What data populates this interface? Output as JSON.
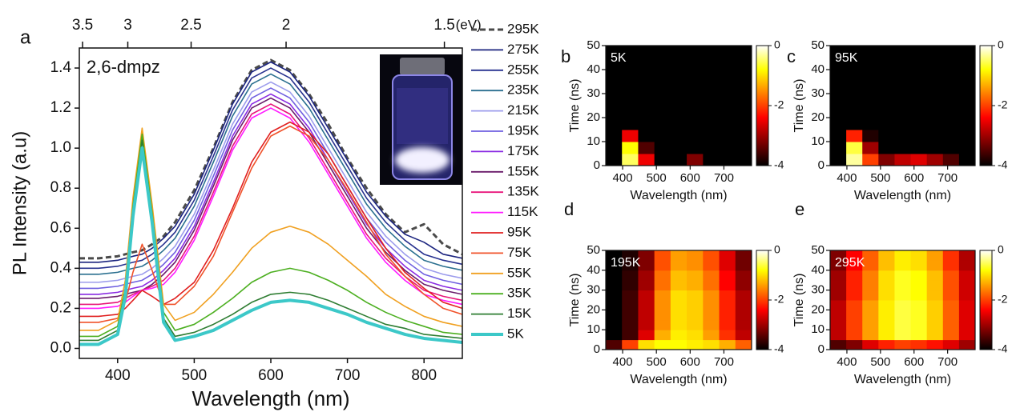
{
  "chart_data": [
    {
      "type": "line",
      "panel_label": "a",
      "annotation": "2,6-dmpz",
      "xlabel": "Wavelength (nm)",
      "ylabel": "PL Intensity (a.u)",
      "x2label": "(eV)",
      "x": [
        350,
        375,
        400,
        410,
        420,
        432,
        445,
        460,
        475,
        500,
        525,
        550,
        575,
        600,
        625,
        650,
        675,
        700,
        725,
        750,
        775,
        800,
        825,
        850
      ],
      "xlim": [
        350,
        850
      ],
      "xticks": [
        400,
        500,
        600,
        700,
        800
      ],
      "ylim": [
        -0.05,
        1.5
      ],
      "yticks": [
        {
          "value": 0,
          "label": "0.0"
        },
        0.2,
        0.4,
        0.6,
        0.8,
        {
          "value": 1,
          "label": "1.0"
        },
        1.2,
        1.4
      ],
      "x2ticks": [
        3.5,
        3,
        2.5,
        2,
        1.5
      ],
      "series": [
        {
          "name": "295K",
          "color": "#4a4a4a",
          "line_style": "dashed",
          "values": [
            0.45,
            0.45,
            0.46,
            0.47,
            0.48,
            0.49,
            0.52,
            0.56,
            0.63,
            0.79,
            1.0,
            1.23,
            1.39,
            1.44,
            1.39,
            1.27,
            1.12,
            0.95,
            0.8,
            0.67,
            0.58,
            0.62,
            0.52,
            0.47
          ]
        },
        {
          "name": "275K",
          "color": "#1a237e",
          "values": [
            0.43,
            0.43,
            0.44,
            0.45,
            0.46,
            0.47,
            0.5,
            0.55,
            0.61,
            0.77,
            0.99,
            1.22,
            1.38,
            1.43,
            1.38,
            1.26,
            1.1,
            0.94,
            0.78,
            0.66,
            0.57,
            0.53,
            0.47,
            0.45
          ]
        },
        {
          "name": "255K",
          "color": "#27318f",
          "values": [
            0.4,
            0.4,
            0.41,
            0.42,
            0.43,
            0.44,
            0.47,
            0.52,
            0.58,
            0.74,
            0.96,
            1.19,
            1.35,
            1.4,
            1.35,
            1.23,
            1.07,
            0.91,
            0.75,
            0.63,
            0.54,
            0.47,
            0.44,
            0.42
          ]
        },
        {
          "name": "235K",
          "color": "#2a6f8f",
          "values": [
            0.37,
            0.37,
            0.38,
            0.39,
            0.4,
            0.41,
            0.44,
            0.49,
            0.55,
            0.71,
            0.93,
            1.16,
            1.32,
            1.37,
            1.32,
            1.2,
            1.04,
            0.88,
            0.72,
            0.6,
            0.51,
            0.44,
            0.41,
            0.39
          ]
        },
        {
          "name": "215K",
          "color": "#9c9cec",
          "values": [
            0.33,
            0.33,
            0.34,
            0.35,
            0.36,
            0.37,
            0.4,
            0.45,
            0.51,
            0.67,
            0.89,
            1.12,
            1.28,
            1.33,
            1.28,
            1.16,
            1.0,
            0.84,
            0.68,
            0.56,
            0.47,
            0.4,
            0.37,
            0.35
          ]
        },
        {
          "name": "195K",
          "color": "#6f5fe0",
          "values": [
            0.3,
            0.3,
            0.31,
            0.32,
            0.33,
            0.34,
            0.37,
            0.42,
            0.48,
            0.64,
            0.86,
            1.09,
            1.25,
            1.3,
            1.25,
            1.13,
            0.97,
            0.81,
            0.65,
            0.53,
            0.44,
            0.37,
            0.34,
            0.32
          ]
        },
        {
          "name": "175K",
          "color": "#8a2be2",
          "values": [
            0.27,
            0.27,
            0.28,
            0.29,
            0.3,
            0.31,
            0.34,
            0.39,
            0.45,
            0.61,
            0.83,
            1.06,
            1.22,
            1.27,
            1.22,
            1.1,
            0.94,
            0.78,
            0.62,
            0.5,
            0.41,
            0.34,
            0.31,
            0.29
          ]
        },
        {
          "name": "155K",
          "color": "#6a1b6a",
          "values": [
            0.25,
            0.25,
            0.26,
            0.27,
            0.28,
            0.29,
            0.32,
            0.37,
            0.43,
            0.59,
            0.81,
            1.04,
            1.2,
            1.25,
            1.2,
            1.08,
            0.92,
            0.76,
            0.6,
            0.48,
            0.39,
            0.32,
            0.29,
            0.27
          ]
        },
        {
          "name": "135K",
          "color": "#e8157a",
          "values": [
            0.22,
            0.22,
            0.23,
            0.25,
            0.27,
            0.29,
            0.31,
            0.34,
            0.4,
            0.56,
            0.78,
            1.01,
            1.17,
            1.22,
            1.17,
            1.05,
            0.89,
            0.73,
            0.57,
            0.45,
            0.36,
            0.29,
            0.26,
            0.24
          ]
        },
        {
          "name": "115K",
          "color": "#ff1aff",
          "values": [
            0.2,
            0.2,
            0.21,
            0.23,
            0.26,
            0.29,
            0.3,
            0.32,
            0.38,
            0.54,
            0.76,
            0.99,
            1.15,
            1.2,
            1.15,
            1.03,
            0.87,
            0.71,
            0.55,
            0.43,
            0.34,
            0.27,
            0.24,
            0.22
          ]
        },
        {
          "name": "95K",
          "color": "#e02020",
          "values": [
            0.16,
            0.16,
            0.17,
            0.2,
            0.24,
            0.29,
            0.26,
            0.22,
            0.25,
            0.33,
            0.49,
            0.7,
            0.93,
            1.08,
            1.13,
            1.08,
            0.97,
            0.81,
            0.65,
            0.5,
            0.38,
            0.3,
            0.23,
            0.2
          ]
        },
        {
          "name": "75K",
          "color": "#f0522a",
          "values": [
            0.13,
            0.13,
            0.15,
            0.23,
            0.38,
            0.52,
            0.39,
            0.22,
            0.22,
            0.31,
            0.46,
            0.68,
            0.9,
            1.06,
            1.11,
            1.06,
            0.94,
            0.79,
            0.63,
            0.47,
            0.36,
            0.27,
            0.2,
            0.17
          ]
        },
        {
          "name": "55K",
          "color": "#f0a020",
          "values": [
            0.09,
            0.09,
            0.14,
            0.34,
            0.75,
            1.1,
            0.72,
            0.22,
            0.14,
            0.18,
            0.27,
            0.38,
            0.5,
            0.58,
            0.61,
            0.58,
            0.52,
            0.44,
            0.36,
            0.27,
            0.21,
            0.16,
            0.13,
            0.11
          ]
        },
        {
          "name": "35K",
          "color": "#4caf20",
          "values": [
            0.06,
            0.06,
            0.11,
            0.3,
            0.71,
            1.07,
            0.68,
            0.18,
            0.09,
            0.12,
            0.18,
            0.25,
            0.33,
            0.38,
            0.4,
            0.38,
            0.34,
            0.29,
            0.23,
            0.18,
            0.14,
            0.11,
            0.08,
            0.07
          ]
        },
        {
          "name": "15K",
          "color": "#2e7d32",
          "values": [
            0.04,
            0.04,
            0.09,
            0.28,
            0.69,
            1.04,
            0.66,
            0.15,
            0.06,
            0.08,
            0.12,
            0.17,
            0.23,
            0.27,
            0.28,
            0.27,
            0.24,
            0.2,
            0.16,
            0.12,
            0.1,
            0.07,
            0.06,
            0.05
          ]
        },
        {
          "name": "5K",
          "color": "#3cc8c8",
          "line_style": "thick",
          "values": [
            0.02,
            0.02,
            0.07,
            0.26,
            0.66,
            1.0,
            0.63,
            0.13,
            0.04,
            0.06,
            0.09,
            0.14,
            0.19,
            0.23,
            0.24,
            0.23,
            0.2,
            0.17,
            0.13,
            0.1,
            0.07,
            0.05,
            0.04,
            0.03
          ]
        }
      ]
    },
    {
      "type": "heatmap",
      "panel_label": "b",
      "annotation": "5K",
      "xlabel": "Wavelength (nm)",
      "ylabel": "Time (ns)",
      "colormap": "hot",
      "xlim": [
        350,
        782
      ],
      "xticks": [
        400,
        500,
        600,
        700
      ],
      "ylim": [
        0,
        50
      ],
      "yticks": [
        0,
        10,
        20,
        30,
        40,
        50
      ],
      "zlim": [
        -4,
        0
      ],
      "zticks": [
        0,
        -2,
        -4
      ],
      "x": [
        374,
        422,
        470,
        518,
        566,
        614,
        662,
        710,
        758
      ],
      "y": [
        2.5,
        7.5,
        12.5,
        17.5,
        22.5,
        27.5,
        32.5,
        37.5,
        42.5,
        47.5
      ],
      "z": [
        [
          -4,
          -0.5,
          -2.5,
          -4,
          -4,
          -3.2,
          -4,
          -4,
          -4
        ],
        [
          -4,
          -0.8,
          -3.5,
          -4,
          -4,
          -4,
          -4,
          -4,
          -4
        ],
        [
          -4,
          -2.5,
          -4,
          -4,
          -4,
          -4,
          -4,
          -4,
          -4
        ],
        [
          -4,
          -4,
          -4,
          -4,
          -4,
          -4,
          -4,
          -4,
          -4
        ],
        [
          -4,
          -4,
          -4,
          -4,
          -4,
          -4,
          -4,
          -4,
          -4
        ],
        [
          -4,
          -4,
          -4,
          -4,
          -4,
          -4,
          -4,
          -4,
          -4
        ],
        [
          -4,
          -4,
          -4,
          -4,
          -4,
          -4,
          -4,
          -4,
          -4
        ],
        [
          -4,
          -4,
          -4,
          -4,
          -4,
          -4,
          -4,
          -4,
          -4
        ],
        [
          -4,
          -4,
          -4,
          -4,
          -4,
          -4,
          -4,
          -4,
          -4
        ],
        [
          -4,
          -4,
          -4,
          -4,
          -4,
          -4,
          -4,
          -4,
          -4
        ]
      ]
    },
    {
      "type": "heatmap",
      "panel_label": "c",
      "annotation": "95K",
      "xlabel": "Wavelength (nm)",
      "ylabel": "Time (ns)",
      "colormap": "hot",
      "xlim": [
        350,
        782
      ],
      "xticks": [
        400,
        500,
        600,
        700
      ],
      "ylim": [
        0,
        50
      ],
      "yticks": [
        0,
        10,
        20,
        30,
        40,
        50
      ],
      "zlim": [
        -4,
        0
      ],
      "zticks": [
        0,
        -2,
        -4
      ],
      "x": [
        374,
        422,
        470,
        518,
        566,
        614,
        662,
        710,
        758
      ],
      "y": [
        2.5,
        7.5,
        12.5,
        17.5,
        22.5,
        27.5,
        32.5,
        37.5,
        42.5,
        47.5
      ],
      "z": [
        [
          -4,
          -0.3,
          -2,
          -3.2,
          -2.8,
          -2.6,
          -3,
          -3.5,
          -4
        ],
        [
          -4,
          -0.6,
          -3,
          -4,
          -4,
          -4,
          -4,
          -4,
          -4
        ],
        [
          -4,
          -2.2,
          -3.8,
          -4,
          -4,
          -4,
          -4,
          -4,
          -4
        ],
        [
          -4,
          -4,
          -4,
          -4,
          -4,
          -4,
          -4,
          -4,
          -4
        ],
        [
          -4,
          -4,
          -4,
          -4,
          -4,
          -4,
          -4,
          -4,
          -4
        ],
        [
          -4,
          -4,
          -4,
          -4,
          -4,
          -4,
          -4,
          -4,
          -4
        ],
        [
          -4,
          -4,
          -4,
          -4,
          -4,
          -4,
          -4,
          -4,
          -4
        ],
        [
          -4,
          -4,
          -4,
          -4,
          -4,
          -4,
          -4,
          -4,
          -4
        ],
        [
          -4,
          -4,
          -4,
          -4,
          -4,
          -4,
          -4,
          -4,
          -4
        ],
        [
          -4,
          -4,
          -4,
          -4,
          -4,
          -4,
          -4,
          -4,
          -4
        ]
      ]
    },
    {
      "type": "heatmap",
      "panel_label": "d",
      "annotation": "195K",
      "xlabel": "Wavelength (nm)",
      "ylabel": "Time (ns)",
      "colormap": "hot",
      "xlim": [
        350,
        782
      ],
      "xticks": [
        400,
        500,
        600,
        700
      ],
      "ylim": [
        0,
        50
      ],
      "yticks": [
        0,
        10,
        20,
        30,
        40,
        50
      ],
      "zlim": [
        -4,
        0
      ],
      "zticks": [
        0,
        -2,
        -4
      ],
      "x": [
        374,
        422,
        470,
        518,
        566,
        614,
        662,
        710,
        758
      ],
      "y": [
        2.5,
        7.5,
        12.5,
        17.5,
        22.5,
        27.5,
        32.5,
        37.5,
        42.5,
        47.5
      ],
      "z": [
        [
          -3.5,
          -2.0,
          -1.0,
          -0.8,
          -0.8,
          -0.9,
          -1.0,
          -1.3,
          -1.8
        ],
        [
          -4,
          -3.6,
          -2.6,
          -1.3,
          -0.9,
          -1.0,
          -1.4,
          -2.1,
          -2.8
        ],
        [
          -4,
          -3.6,
          -2.8,
          -1.5,
          -1.0,
          -1.1,
          -1.5,
          -2.2,
          -2.9
        ],
        [
          -4,
          -3.6,
          -2.8,
          -1.5,
          -1.0,
          -1.1,
          -1.5,
          -2.2,
          -2.9
        ],
        [
          -4,
          -3.6,
          -2.8,
          -1.5,
          -1.0,
          -1.1,
          -1.5,
          -2.2,
          -2.9
        ],
        [
          -4,
          -3.6,
          -2.8,
          -1.5,
          -1.0,
          -1.1,
          -1.5,
          -2.2,
          -2.9
        ],
        [
          -4,
          -3.7,
          -3.0,
          -1.7,
          -1.2,
          -1.3,
          -1.7,
          -2.4,
          -3.1
        ],
        [
          -4,
          -3.7,
          -3.0,
          -1.7,
          -1.2,
          -1.3,
          -1.7,
          -2.4,
          -3.1
        ],
        [
          -4,
          -3.8,
          -3.2,
          -1.9,
          -1.4,
          -1.5,
          -1.9,
          -2.6,
          -3.3
        ],
        [
          -4,
          -3.8,
          -3.2,
          -1.9,
          -1.4,
          -1.5,
          -1.9,
          -2.6,
          -3.3
        ]
      ]
    },
    {
      "type": "heatmap",
      "panel_label": "e",
      "annotation": "295K",
      "xlabel": "Wavelength (nm)",
      "ylabel": "Time (ns)",
      "colormap": "hot",
      "xlim": [
        350,
        782
      ],
      "xticks": [
        400,
        500,
        600,
        700
      ],
      "ylim": [
        0,
        50
      ],
      "yticks": [
        0,
        10,
        20,
        30,
        40,
        50
      ],
      "zlim": [
        -4,
        0
      ],
      "zticks": [
        0,
        -2,
        -4
      ],
      "x": [
        374,
        422,
        470,
        518,
        566,
        614,
        662,
        710,
        758
      ],
      "y": [
        2.5,
        7.5,
        12.5,
        17.5,
        22.5,
        27.5,
        32.5,
        37.5,
        42.5,
        47.5
      ],
      "z": [
        [
          -3.5,
          -3.2,
          -2.6,
          -2.2,
          -2.0,
          -2.1,
          -2.3,
          -2.6,
          -3.0
        ],
        [
          -2.8,
          -2.0,
          -1.4,
          -0.9,
          -0.6,
          -0.7,
          -1.1,
          -1.8,
          -2.6
        ],
        [
          -2.8,
          -2.0,
          -1.4,
          -0.9,
          -0.6,
          -0.7,
          -1.1,
          -1.8,
          -2.6
        ],
        [
          -2.8,
          -2.0,
          -1.4,
          -0.9,
          -0.6,
          -0.7,
          -1.1,
          -1.8,
          -2.6
        ],
        [
          -2.8,
          -2.0,
          -1.4,
          -0.9,
          -0.6,
          -0.7,
          -1.1,
          -1.8,
          -2.6
        ],
        [
          -3.0,
          -2.2,
          -1.6,
          -1.0,
          -0.7,
          -0.8,
          -1.2,
          -1.9,
          -2.7
        ],
        [
          -3.0,
          -2.2,
          -1.6,
          -1.0,
          -0.7,
          -0.8,
          -1.2,
          -1.9,
          -2.7
        ],
        [
          -3.0,
          -2.2,
          -1.6,
          -1.0,
          -0.7,
          -0.8,
          -1.2,
          -1.9,
          -2.7
        ],
        [
          -3.2,
          -2.4,
          -1.8,
          -1.2,
          -0.9,
          -1.0,
          -1.4,
          -2.1,
          -2.9
        ],
        [
          -3.2,
          -2.4,
          -1.8,
          -1.2,
          -0.9,
          -1.0,
          -1.4,
          -2.1,
          -2.9
        ]
      ]
    }
  ]
}
